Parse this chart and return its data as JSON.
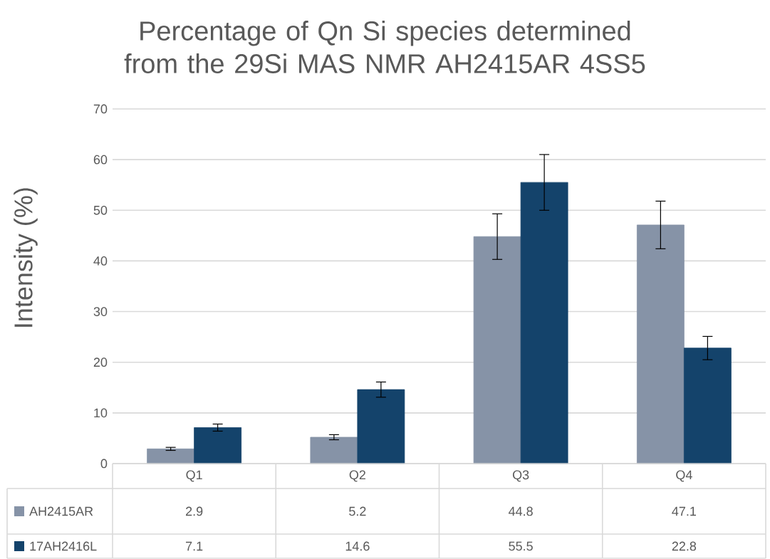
{
  "chart_data": {
    "type": "bar",
    "title": "Percentage of Qn Si species determined from the 29Si MAS NMR AH2415AR 4SS5",
    "ylabel": "Intensity (%)",
    "categories": [
      "Q1",
      "Q2",
      "Q3",
      "Q4"
    ],
    "series": [
      {
        "name": "AH2415AR",
        "color": "#8693a7",
        "values": [
          2.9,
          5.2,
          44.8,
          47.1
        ],
        "errors": [
          0.3,
          0.5,
          4.5,
          4.7
        ]
      },
      {
        "name": "17AH2416L",
        "color": "#14436b",
        "values": [
          7.1,
          14.6,
          55.5,
          22.8
        ],
        "errors": [
          0.7,
          1.5,
          5.5,
          2.3
        ]
      }
    ],
    "ylim": [
      0,
      70
    ],
    "yticks": [
      0,
      10,
      20,
      30,
      40,
      50,
      60,
      70
    ],
    "grid": "y",
    "legend": "bottom",
    "data_labels": true
  }
}
